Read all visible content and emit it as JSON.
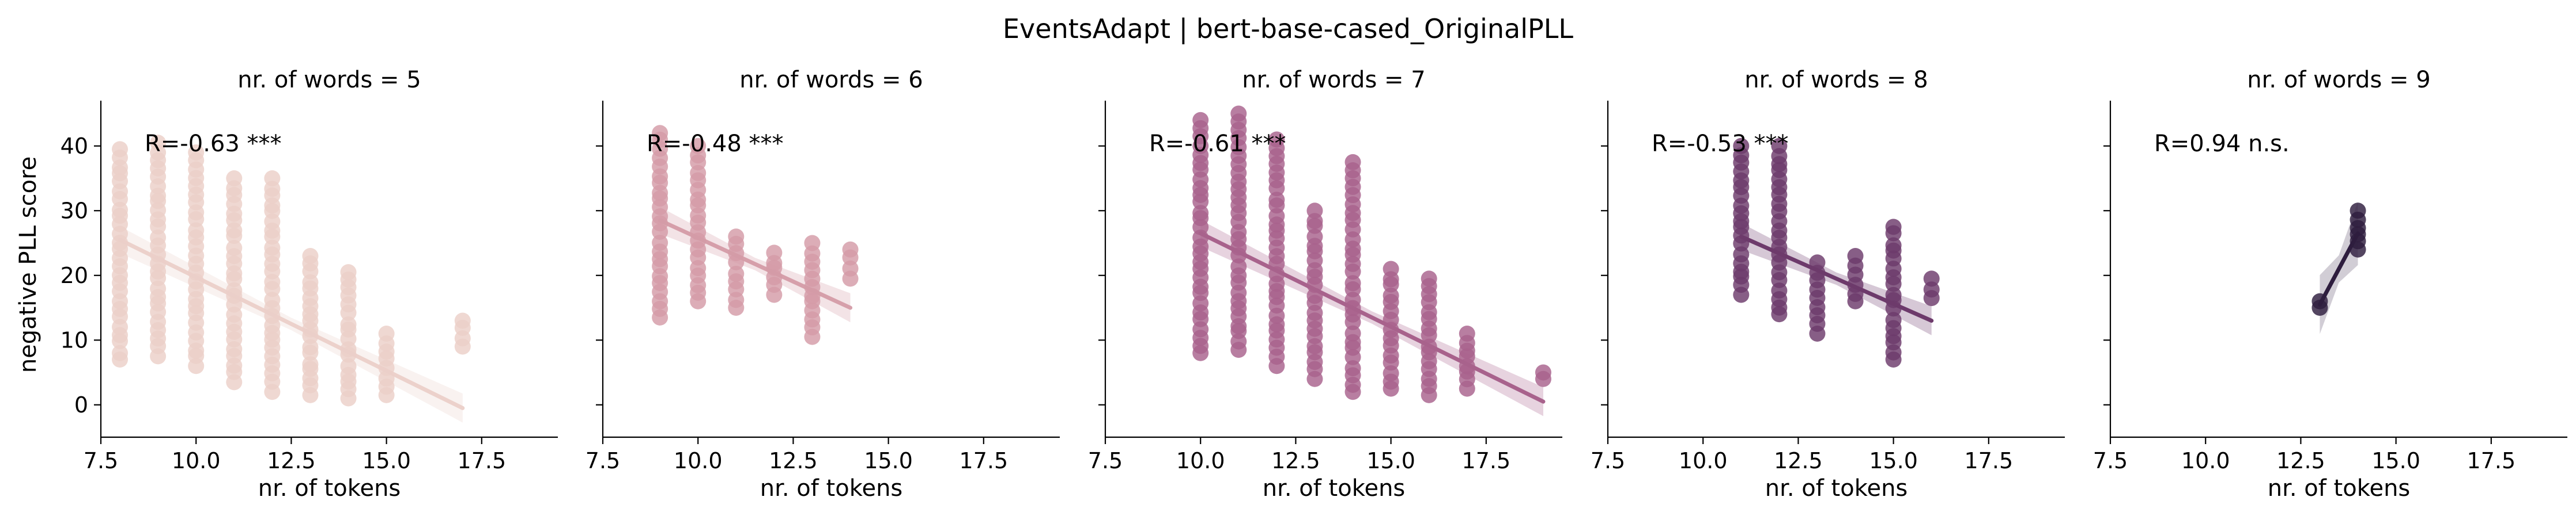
{
  "chart_data": {
    "type": "scatter",
    "title": "EventsAdapt | bert-base-cased_OriginalPLL",
    "xlabel": "nr. of tokens",
    "ylabel": "negative PLL score",
    "xlim": [
      7.5,
      19.5
    ],
    "ylim": [
      -5,
      47
    ],
    "xticks": [
      "7.5",
      "10.0",
      "12.5",
      "15.0",
      "17.5"
    ],
    "yticks": [
      "0",
      "10",
      "20",
      "30",
      "40"
    ],
    "facets": [
      {
        "title": "nr. of words = 5",
        "annotation": "R=-0.63 ***",
        "color": "#ebcfc8",
        "fit": {
          "x": [
            8,
            17
          ],
          "y": [
            25.5,
            -0.5
          ]
        },
        "columns": [
          {
            "x": 8,
            "ymin": 7,
            "ymax": 39.5
          },
          {
            "x": 9,
            "ymin": 7.5,
            "ymax": 40.5
          },
          {
            "x": 10,
            "ymin": 6,
            "ymax": 39
          },
          {
            "x": 11,
            "ymin": 3.5,
            "ymax": 35
          },
          {
            "x": 12,
            "ymin": 2,
            "ymax": 35
          },
          {
            "x": 13,
            "ymin": 1.5,
            "ymax": 23
          },
          {
            "x": 14,
            "ymin": 1,
            "ymax": 20.5
          },
          {
            "x": 15,
            "ymin": 1.5,
            "ymax": 11
          },
          {
            "x": 17,
            "ymin": 9,
            "ymax": 13
          }
        ]
      },
      {
        "title": "nr. of words = 6",
        "annotation": "R=-0.48 ***",
        "color": "#d49ba7",
        "fit": {
          "x": [
            9,
            14
          ],
          "y": [
            28.5,
            15
          ]
        },
        "columns": [
          {
            "x": 9,
            "ymin": 13.5,
            "ymax": 42
          },
          {
            "x": 10,
            "ymin": 16,
            "ymax": 40
          },
          {
            "x": 11,
            "ymin": 15,
            "ymax": 26
          },
          {
            "x": 12,
            "ymin": 17,
            "ymax": 23.5
          },
          {
            "x": 13,
            "ymin": 10.5,
            "ymax": 25
          },
          {
            "x": 14,
            "ymin": 19.5,
            "ymax": 24
          }
        ]
      },
      {
        "title": "nr. of words = 7",
        "annotation": "R=-0.61 ***",
        "color": "#a8628c",
        "fit": {
          "x": [
            10,
            19
          ],
          "y": [
            26.5,
            0.5
          ]
        },
        "columns": [
          {
            "x": 10,
            "ymin": 8,
            "ymax": 44
          },
          {
            "x": 11,
            "ymin": 8.5,
            "ymax": 45
          },
          {
            "x": 12,
            "ymin": 6,
            "ymax": 41
          },
          {
            "x": 13,
            "ymin": 4,
            "ymax": 30
          },
          {
            "x": 14,
            "ymin": 2,
            "ymax": 37.5
          },
          {
            "x": 15,
            "ymin": 2.5,
            "ymax": 21
          },
          {
            "x": 16,
            "ymin": 1.5,
            "ymax": 19.5
          },
          {
            "x": 17,
            "ymin": 2.5,
            "ymax": 11
          },
          {
            "x": 19,
            "ymin": 4,
            "ymax": 5
          }
        ]
      },
      {
        "title": "nr. of words = 8",
        "annotation": "R=-0.53 ***",
        "color": "#6d3a6b",
        "fit": {
          "x": [
            11,
            16
          ],
          "y": [
            26,
            13
          ]
        },
        "columns": [
          {
            "x": 11,
            "ymin": 17,
            "ymax": 40
          },
          {
            "x": 12,
            "ymin": 14,
            "ymax": 40
          },
          {
            "x": 13,
            "ymin": 11,
            "ymax": 22
          },
          {
            "x": 14,
            "ymin": 16,
            "ymax": 23
          },
          {
            "x": 15,
            "ymin": 7,
            "ymax": 27.5
          },
          {
            "x": 16,
            "ymin": 16.5,
            "ymax": 19.5
          }
        ]
      },
      {
        "title": "nr. of words = 9",
        "annotation": "R=0.94 n.s.",
        "color": "#2e1d3e",
        "fit": {
          "x": [
            13,
            14
          ],
          "y": [
            15.5,
            26.5
          ]
        },
        "columns": [
          {
            "x": 13,
            "ymin": 15,
            "ymax": 16
          },
          {
            "x": 14,
            "ymin": 24,
            "ymax": 30
          }
        ]
      }
    ]
  }
}
